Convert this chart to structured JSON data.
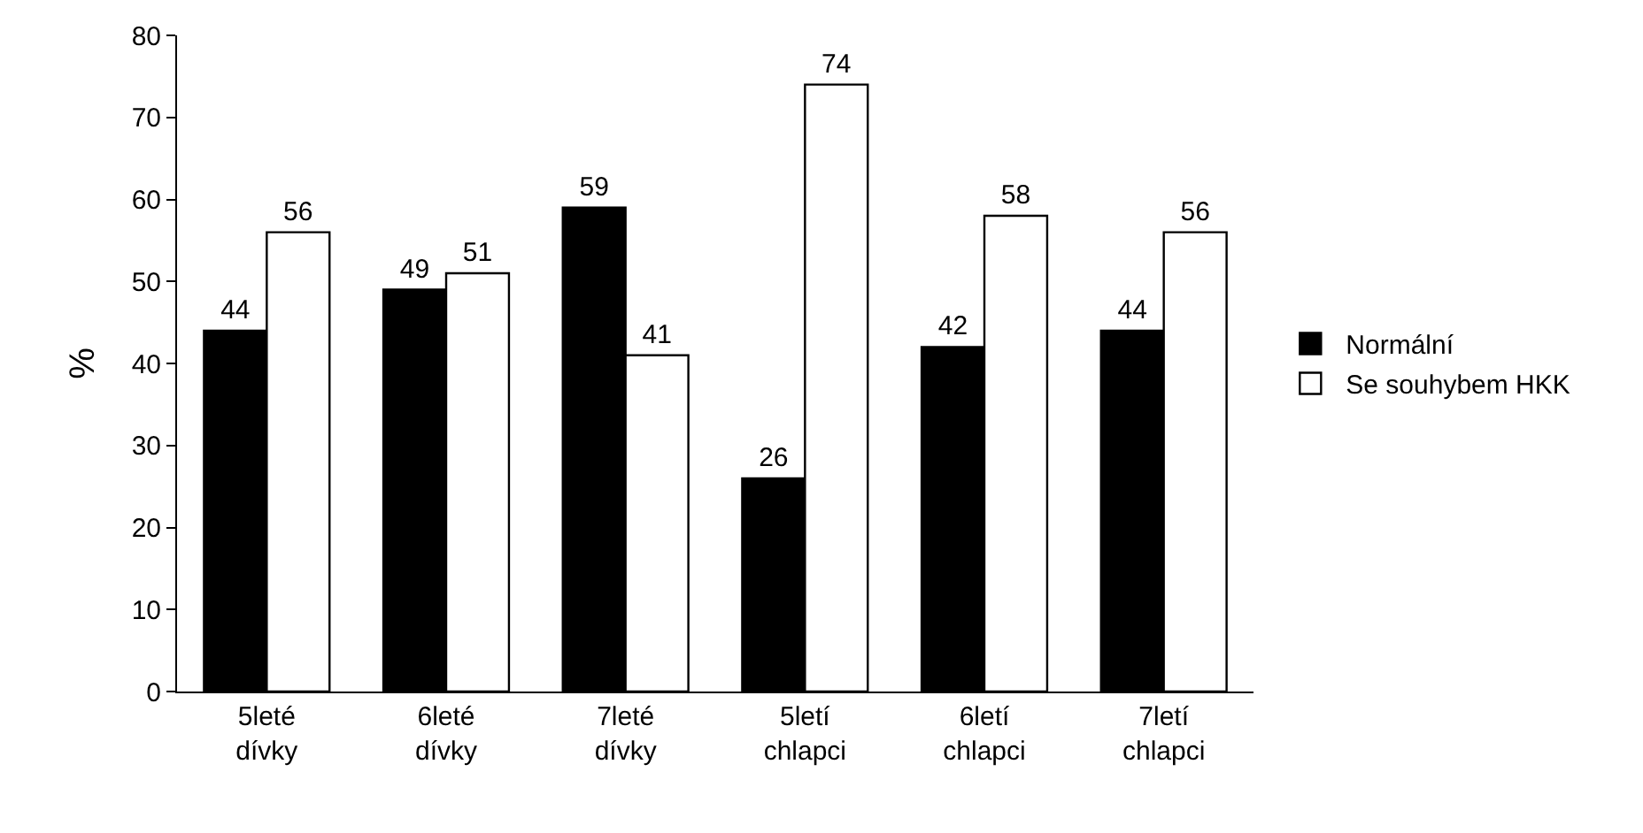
{
  "chart_data": {
    "type": "bar",
    "ylabel": "%",
    "categories": [
      "5leté dívky",
      "6leté dívky",
      "7leté dívky",
      "5letí chlapci",
      "6letí chlapci",
      "7letí chlapci"
    ],
    "series": [
      {
        "name": "Normální",
        "color": "#000000",
        "values": [
          44,
          49,
          59,
          26,
          42,
          44
        ]
      },
      {
        "name": "Se souhybem HKK",
        "color": "#ffffff",
        "values": [
          56,
          51,
          41,
          74,
          58,
          56
        ]
      }
    ],
    "ylim": [
      0,
      80
    ],
    "yticks": [
      0,
      10,
      20,
      30,
      40,
      50,
      60,
      70,
      80
    ],
    "legend": "right",
    "data_labels": true
  }
}
